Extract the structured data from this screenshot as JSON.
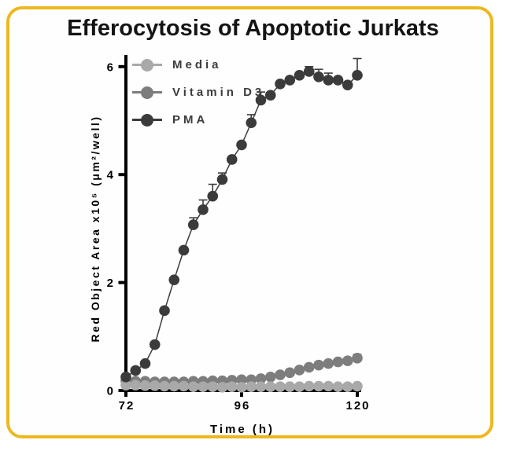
{
  "frame": {
    "border_color": "#edb81f",
    "background": "#fefefe"
  },
  "chart_data": {
    "type": "scatter",
    "title": "Efferocytosis of Apoptotic Jurkats",
    "xlabel": "Time (h)",
    "ylabel": "Red Object Area x10⁵ (μm²/well)",
    "xlim": [
      72,
      120
    ],
    "ylim": [
      0,
      6
    ],
    "xticks": [
      72,
      96,
      120
    ],
    "yticks": [
      0,
      2,
      4,
      6
    ],
    "grid": "off",
    "legend_position": "top-left-inside",
    "x": [
      72,
      74,
      76,
      78,
      80,
      82,
      84,
      86,
      88,
      90,
      92,
      94,
      96,
      98,
      100,
      102,
      104,
      106,
      108,
      110,
      112,
      114,
      116,
      118,
      120
    ],
    "series": [
      {
        "name": "Media",
        "color": "#a9a9a9",
        "values": [
          0.1,
          0.1,
          0.09,
          0.09,
          0.08,
          0.08,
          0.08,
          0.07,
          0.07,
          0.07,
          0.06,
          0.07,
          0.06,
          0.07,
          0.07,
          0.07,
          0.07,
          0.07,
          0.07,
          0.08,
          0.08,
          0.08,
          0.07,
          0.07,
          0.08
        ],
        "errors_up": [
          0,
          0,
          0,
          0,
          0,
          0,
          0,
          0,
          0,
          0,
          0,
          0,
          0,
          0,
          0,
          0,
          0,
          0,
          0,
          0,
          0,
          0,
          0,
          0,
          0
        ]
      },
      {
        "name": "Vitamin D3",
        "color": "#7d7d7d",
        "values": [
          0.18,
          0.17,
          0.17,
          0.16,
          0.16,
          0.16,
          0.16,
          0.17,
          0.17,
          0.18,
          0.18,
          0.19,
          0.2,
          0.2,
          0.22,
          0.25,
          0.29,
          0.33,
          0.38,
          0.43,
          0.47,
          0.5,
          0.53,
          0.55,
          0.6
        ],
        "errors_up": [
          0,
          0,
          0,
          0,
          0,
          0,
          0,
          0,
          0,
          0,
          0,
          0,
          0,
          0,
          0,
          0,
          0,
          0,
          0,
          0.05,
          0.06,
          0,
          0,
          0,
          0.07
        ]
      },
      {
        "name": "PMA",
        "color": "#3b3b3b",
        "values": [
          0.25,
          0.37,
          0.5,
          0.85,
          1.48,
          2.05,
          2.6,
          3.07,
          3.35,
          3.6,
          3.91,
          4.28,
          4.55,
          4.96,
          5.38,
          5.47,
          5.68,
          5.75,
          5.84,
          5.91,
          5.81,
          5.75,
          5.75,
          5.66,
          5.84
        ],
        "errors_up": [
          0,
          0,
          0,
          0,
          0,
          0,
          0,
          0.13,
          0.18,
          0.22,
          0.12,
          0,
          0,
          0.15,
          0.15,
          0,
          0,
          0,
          0,
          0.09,
          0.14,
          0.13,
          0,
          0,
          0.31
        ]
      }
    ]
  }
}
